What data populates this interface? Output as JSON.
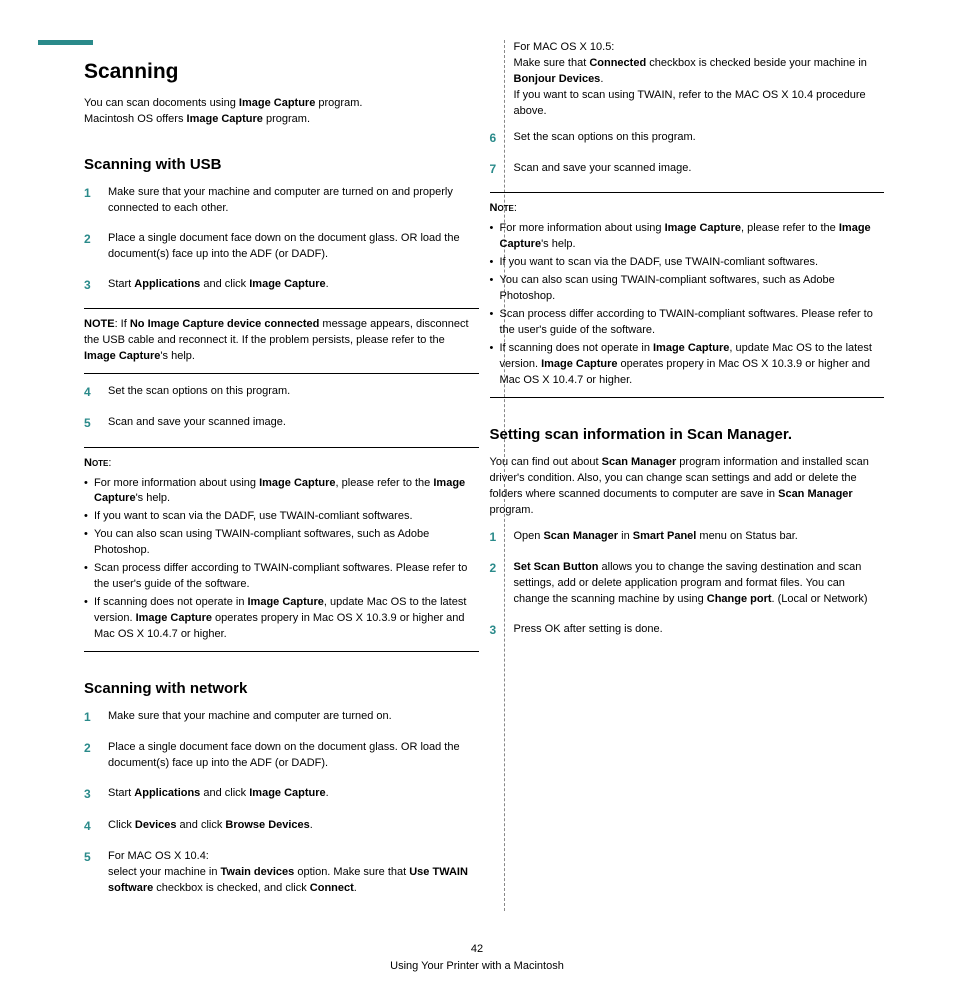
{
  "colors": {
    "accent": "#2a8a8a",
    "text": "#000000",
    "background": "#ffffff",
    "divider": "#888888"
  },
  "typography": {
    "base_fontsize": 11,
    "h1_fontsize": 21,
    "h2_fontsize": 15
  },
  "footer": {
    "page_number": "42",
    "chapter": "Using Your Printer with a Macintosh"
  },
  "left": {
    "title": "Scanning",
    "intro": {
      "line1a": "You can scan docoments using ",
      "line1b": "Image Capture",
      "line1c": " program.",
      "line2a": "Macintosh OS offers ",
      "line2b": "Image Capture",
      "line2c": " program."
    },
    "usb": {
      "heading": "Scanning with USB",
      "steps": {
        "s1": "Make sure that your machine and computer are turned on and properly connected to each other.",
        "s2": "Place a single document face down on the document glass. OR load the document(s) face up into the ADF (or DADF).",
        "s3_a": "Start ",
        "s3_b": "Applications",
        "s3_c": " and click ",
        "s3_d": "Image Capture",
        "s3_e": ".",
        "s4": "Set the scan options on this program.",
        "s5": "Scan and save your scanned image."
      },
      "note_inline_a": "NOTE",
      "note_inline_b": ": If ",
      "note_inline_c": "No Image Capture device connected",
      "note_inline_d": " message appears, disconnect the USB cable and reconnect it. If the problem persists, please refer to the ",
      "note_inline_e": "Image Capture",
      "note_inline_f": "'s help.",
      "note_label": "Note",
      "note_colon": ":",
      "notes": {
        "n1a": "For more information about using ",
        "n1b": "Image Capture",
        "n1c": ", please refer to the ",
        "n1d": "Image Capture",
        "n1e": "'s help.",
        "n2": "If you want to scan via the DADF, use TWAIN-comliant softwares.",
        "n3": "You can also scan using TWAIN-compliant softwares, such as Adobe Photoshop.",
        "n4": "Scan process differ according to TWAIN-compliant softwares. Please refer to the user's guide of the software.",
        "n5a": "If scanning does not operate in ",
        "n5b": "Image Capture",
        "n5c": ", update Mac OS to the latest version. ",
        "n5d": "Image Capture",
        "n5e": " operates propery in Mac OS X 10.3.9 or higher and Mac OS X 10.4.7 or higher."
      }
    },
    "network": {
      "heading": "Scanning with network",
      "steps": {
        "s1": "Make sure that your machine and computer are turned on.",
        "s2": "Place a single document face down on the document glass. OR load the document(s) face up into the ADF (or DADF).",
        "s3_a": "Start ",
        "s3_b": "Applications",
        "s3_c": " and click ",
        "s3_d": "Image Capture",
        "s3_e": ".",
        "s4_a": "Click ",
        "s4_b": "Devices",
        "s4_c": " and click ",
        "s4_d": "Browse Devices",
        "s4_e": ".",
        "s5_line1": "For MAC OS X 10.4:",
        "s5_a": "select your machine in ",
        "s5_b": "Twain devices",
        "s5_c": " option. Make sure that ",
        "s5_d": "Use TWAIN software",
        "s5_e": " checkbox is checked, and click ",
        "s5_f": "Connect",
        "s5_g": "."
      }
    }
  },
  "right": {
    "cont": {
      "line1": "For MAC OS X 10.5:",
      "l2a": "Make sure that ",
      "l2b": "Connected",
      "l2c": " checkbox is checked beside your machine in ",
      "l2d": "Bonjour Devices",
      "l2e": ".",
      "l3": "If you want to scan using TWAIN, refer to the MAC OS X 10.4 procedure above.",
      "s6": "Set the scan options on this program.",
      "s7": "Scan and save your scanned image."
    },
    "note_label": "Note",
    "note_colon": ":",
    "notes": {
      "n1a": "For more information about using ",
      "n1b": "Image Capture",
      "n1c": ", please refer to the ",
      "n1d": "Image Capture",
      "n1e": "'s help.",
      "n2": "If you want to scan via the DADF, use TWAIN-comliant softwares.",
      "n3": "You can also scan using TWAIN-compliant softwares, such as Adobe Photoshop.",
      "n4": "Scan process differ according to TWAIN-compliant softwares. Please refer to the user's guide of the software.",
      "n5a": "If scanning does not operate in ",
      "n5b": "Image Capture",
      "n5c": ", update Mac OS to the latest version. ",
      "n5d": "Image Capture",
      "n5e": " operates propery in Mac OS X 10.3.9 or higher and Mac OS X 10.4.7 or higher."
    },
    "scanmgr": {
      "heading": "Setting scan information in Scan Manager.",
      "intro_a": "You can find out about ",
      "intro_b": "Scan Manager",
      "intro_c": " program information and installed scan driver's condition. Also, you can change scan settings and add or delete the folders where scanned documents to computer are save in ",
      "intro_d": "Scan Manager",
      "intro_e": " program.",
      "steps": {
        "s1_a": "Open ",
        "s1_b": "Scan Manager",
        "s1_c": " in ",
        "s1_d": "Smart Panel",
        "s1_e": " menu on Status bar.",
        "s2_a": "Set Scan Button",
        "s2_b": " allows you to change the saving destination and scan settings, add or delete application program and format files. You can change the scanning machine by using ",
        "s2_c": "Change port",
        "s2_d": ". (Local or Network)",
        "s3": "Press OK after setting is done."
      }
    }
  }
}
